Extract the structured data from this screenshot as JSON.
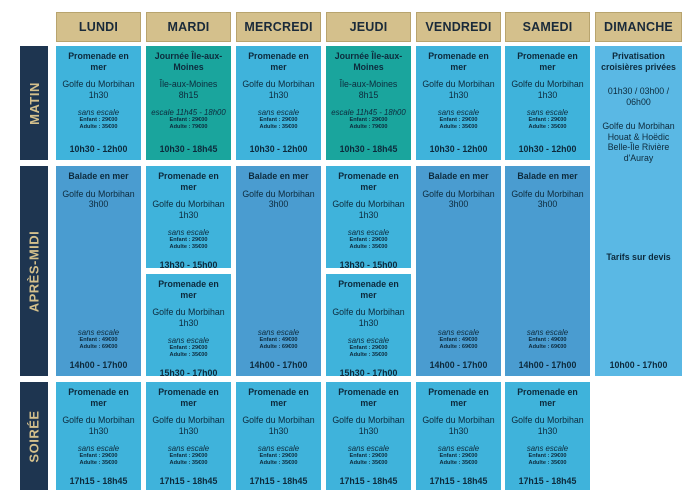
{
  "days": [
    "LUNDI",
    "MARDI",
    "MERCREDI",
    "JEUDI",
    "VENDREDI",
    "SAMEDI",
    "DIMANCHE"
  ],
  "rows": [
    "MATIN",
    "APRÈS-MIDI",
    "SOIRÉE"
  ],
  "colors": {
    "cyan": "#3fb3db",
    "teal": "#1aa59d",
    "steel": "#4a9cd0",
    "sky": "#5ab8e4",
    "gold": "#d4c08c",
    "navy": "#1e3550"
  },
  "promenade": {
    "title": "Promenade en mer",
    "dest": "Golfe du Morbihan",
    "dur": "1h30",
    "note": "sans escale",
    "child": "Enfant : 29€00",
    "adult": "Adulte : 35€00",
    "time_matin": "10h30 - 12h00",
    "time_pm1": "13h30 - 15h00",
    "time_pm2": "15h30 - 17h00",
    "time_soir": "17h15 - 18h45"
  },
  "journee": {
    "title": "Journée Île-aux-Moines",
    "dest": "Île-aux-Moines",
    "dur": "8h15",
    "note": "escale 11h45 - 18h00",
    "child": "Enfant : 29€00",
    "adult": "Adulte : 79€00",
    "time": "10h30 - 18h45"
  },
  "balade": {
    "title": "Balade en mer",
    "dest": "Golfe du Morbihan",
    "dur": "3h00",
    "note": "sans escale",
    "child": "Enfant : 49€00",
    "adult": "Adulte : 69€00",
    "time": "14h00 - 17h00"
  },
  "sunday": {
    "title": "Privatisation croisières privées",
    "hours": "01h30 / 03h00 / 06h00",
    "dest": "Golfe du Morbihan Houat & Hoëdic Belle-Île Rivière d'Auray",
    "tarifs": "Tarifs sur devis",
    "time": "10h00 - 17h00"
  }
}
